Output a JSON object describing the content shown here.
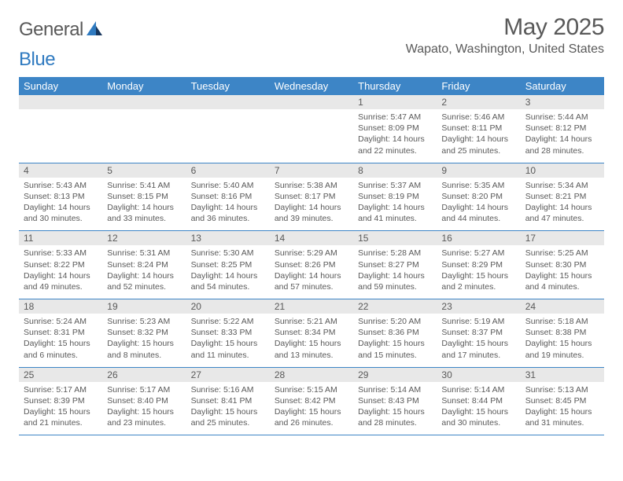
{
  "logo": {
    "word1": "General",
    "word2": "Blue"
  },
  "title": "May 2025",
  "location": "Wapato, Washington, United States",
  "colors": {
    "header_bg": "#3d85c6",
    "header_text": "#ffffff",
    "daynum_bg": "#e8e8e8",
    "text": "#595959",
    "rule": "#3d85c6",
    "logo_accent": "#2f7ac0"
  },
  "day_headers": [
    "Sunday",
    "Monday",
    "Tuesday",
    "Wednesday",
    "Thursday",
    "Friday",
    "Saturday"
  ],
  "weeks": [
    [
      null,
      null,
      null,
      null,
      {
        "n": "1",
        "sr": "5:47 AM",
        "ss": "8:09 PM",
        "dl": "14 hours and 22 minutes."
      },
      {
        "n": "2",
        "sr": "5:46 AM",
        "ss": "8:11 PM",
        "dl": "14 hours and 25 minutes."
      },
      {
        "n": "3",
        "sr": "5:44 AM",
        "ss": "8:12 PM",
        "dl": "14 hours and 28 minutes."
      }
    ],
    [
      {
        "n": "4",
        "sr": "5:43 AM",
        "ss": "8:13 PM",
        "dl": "14 hours and 30 minutes."
      },
      {
        "n": "5",
        "sr": "5:41 AM",
        "ss": "8:15 PM",
        "dl": "14 hours and 33 minutes."
      },
      {
        "n": "6",
        "sr": "5:40 AM",
        "ss": "8:16 PM",
        "dl": "14 hours and 36 minutes."
      },
      {
        "n": "7",
        "sr": "5:38 AM",
        "ss": "8:17 PM",
        "dl": "14 hours and 39 minutes."
      },
      {
        "n": "8",
        "sr": "5:37 AM",
        "ss": "8:19 PM",
        "dl": "14 hours and 41 minutes."
      },
      {
        "n": "9",
        "sr": "5:35 AM",
        "ss": "8:20 PM",
        "dl": "14 hours and 44 minutes."
      },
      {
        "n": "10",
        "sr": "5:34 AM",
        "ss": "8:21 PM",
        "dl": "14 hours and 47 minutes."
      }
    ],
    [
      {
        "n": "11",
        "sr": "5:33 AM",
        "ss": "8:22 PM",
        "dl": "14 hours and 49 minutes."
      },
      {
        "n": "12",
        "sr": "5:31 AM",
        "ss": "8:24 PM",
        "dl": "14 hours and 52 minutes."
      },
      {
        "n": "13",
        "sr": "5:30 AM",
        "ss": "8:25 PM",
        "dl": "14 hours and 54 minutes."
      },
      {
        "n": "14",
        "sr": "5:29 AM",
        "ss": "8:26 PM",
        "dl": "14 hours and 57 minutes."
      },
      {
        "n": "15",
        "sr": "5:28 AM",
        "ss": "8:27 PM",
        "dl": "14 hours and 59 minutes."
      },
      {
        "n": "16",
        "sr": "5:27 AM",
        "ss": "8:29 PM",
        "dl": "15 hours and 2 minutes."
      },
      {
        "n": "17",
        "sr": "5:25 AM",
        "ss": "8:30 PM",
        "dl": "15 hours and 4 minutes."
      }
    ],
    [
      {
        "n": "18",
        "sr": "5:24 AM",
        "ss": "8:31 PM",
        "dl": "15 hours and 6 minutes."
      },
      {
        "n": "19",
        "sr": "5:23 AM",
        "ss": "8:32 PM",
        "dl": "15 hours and 8 minutes."
      },
      {
        "n": "20",
        "sr": "5:22 AM",
        "ss": "8:33 PM",
        "dl": "15 hours and 11 minutes."
      },
      {
        "n": "21",
        "sr": "5:21 AM",
        "ss": "8:34 PM",
        "dl": "15 hours and 13 minutes."
      },
      {
        "n": "22",
        "sr": "5:20 AM",
        "ss": "8:36 PM",
        "dl": "15 hours and 15 minutes."
      },
      {
        "n": "23",
        "sr": "5:19 AM",
        "ss": "8:37 PM",
        "dl": "15 hours and 17 minutes."
      },
      {
        "n": "24",
        "sr": "5:18 AM",
        "ss": "8:38 PM",
        "dl": "15 hours and 19 minutes."
      }
    ],
    [
      {
        "n": "25",
        "sr": "5:17 AM",
        "ss": "8:39 PM",
        "dl": "15 hours and 21 minutes."
      },
      {
        "n": "26",
        "sr": "5:17 AM",
        "ss": "8:40 PM",
        "dl": "15 hours and 23 minutes."
      },
      {
        "n": "27",
        "sr": "5:16 AM",
        "ss": "8:41 PM",
        "dl": "15 hours and 25 minutes."
      },
      {
        "n": "28",
        "sr": "5:15 AM",
        "ss": "8:42 PM",
        "dl": "15 hours and 26 minutes."
      },
      {
        "n": "29",
        "sr": "5:14 AM",
        "ss": "8:43 PM",
        "dl": "15 hours and 28 minutes."
      },
      {
        "n": "30",
        "sr": "5:14 AM",
        "ss": "8:44 PM",
        "dl": "15 hours and 30 minutes."
      },
      {
        "n": "31",
        "sr": "5:13 AM",
        "ss": "8:45 PM",
        "dl": "15 hours and 31 minutes."
      }
    ]
  ],
  "labels": {
    "sunrise": "Sunrise:",
    "sunset": "Sunset:",
    "daylight": "Daylight:"
  }
}
